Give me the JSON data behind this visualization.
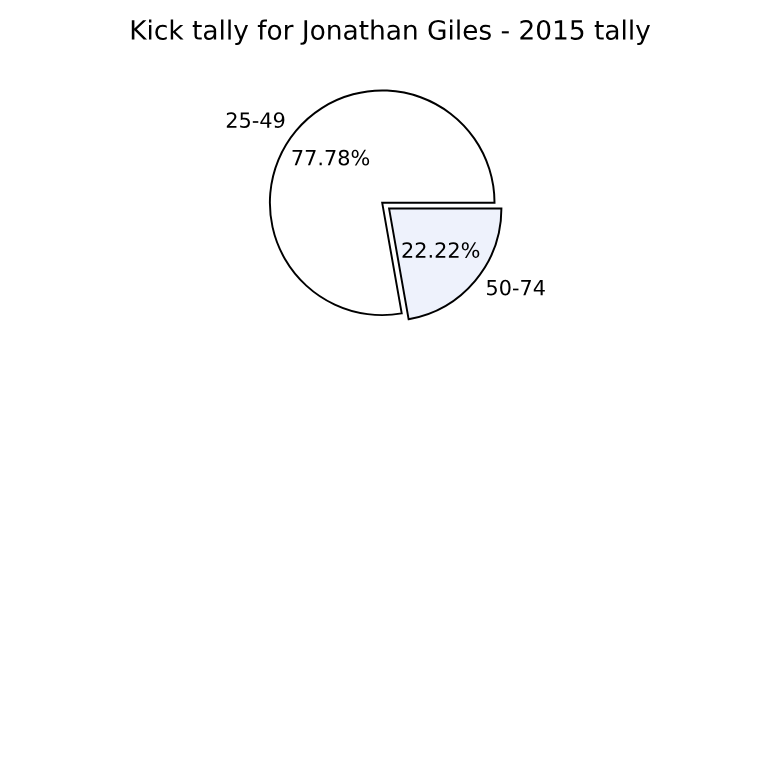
{
  "chart_data": {
    "type": "pie",
    "title": "Kick tally for Jonathan Giles - 2015 tally",
    "categories": [
      "25-49",
      "50-74"
    ],
    "values": [
      77.78,
      22.22
    ],
    "colors": [
      "#ffffff",
      "#eef2fc"
    ],
    "value_labels": [
      "77.78%",
      "22.22%"
    ],
    "legend": false
  }
}
